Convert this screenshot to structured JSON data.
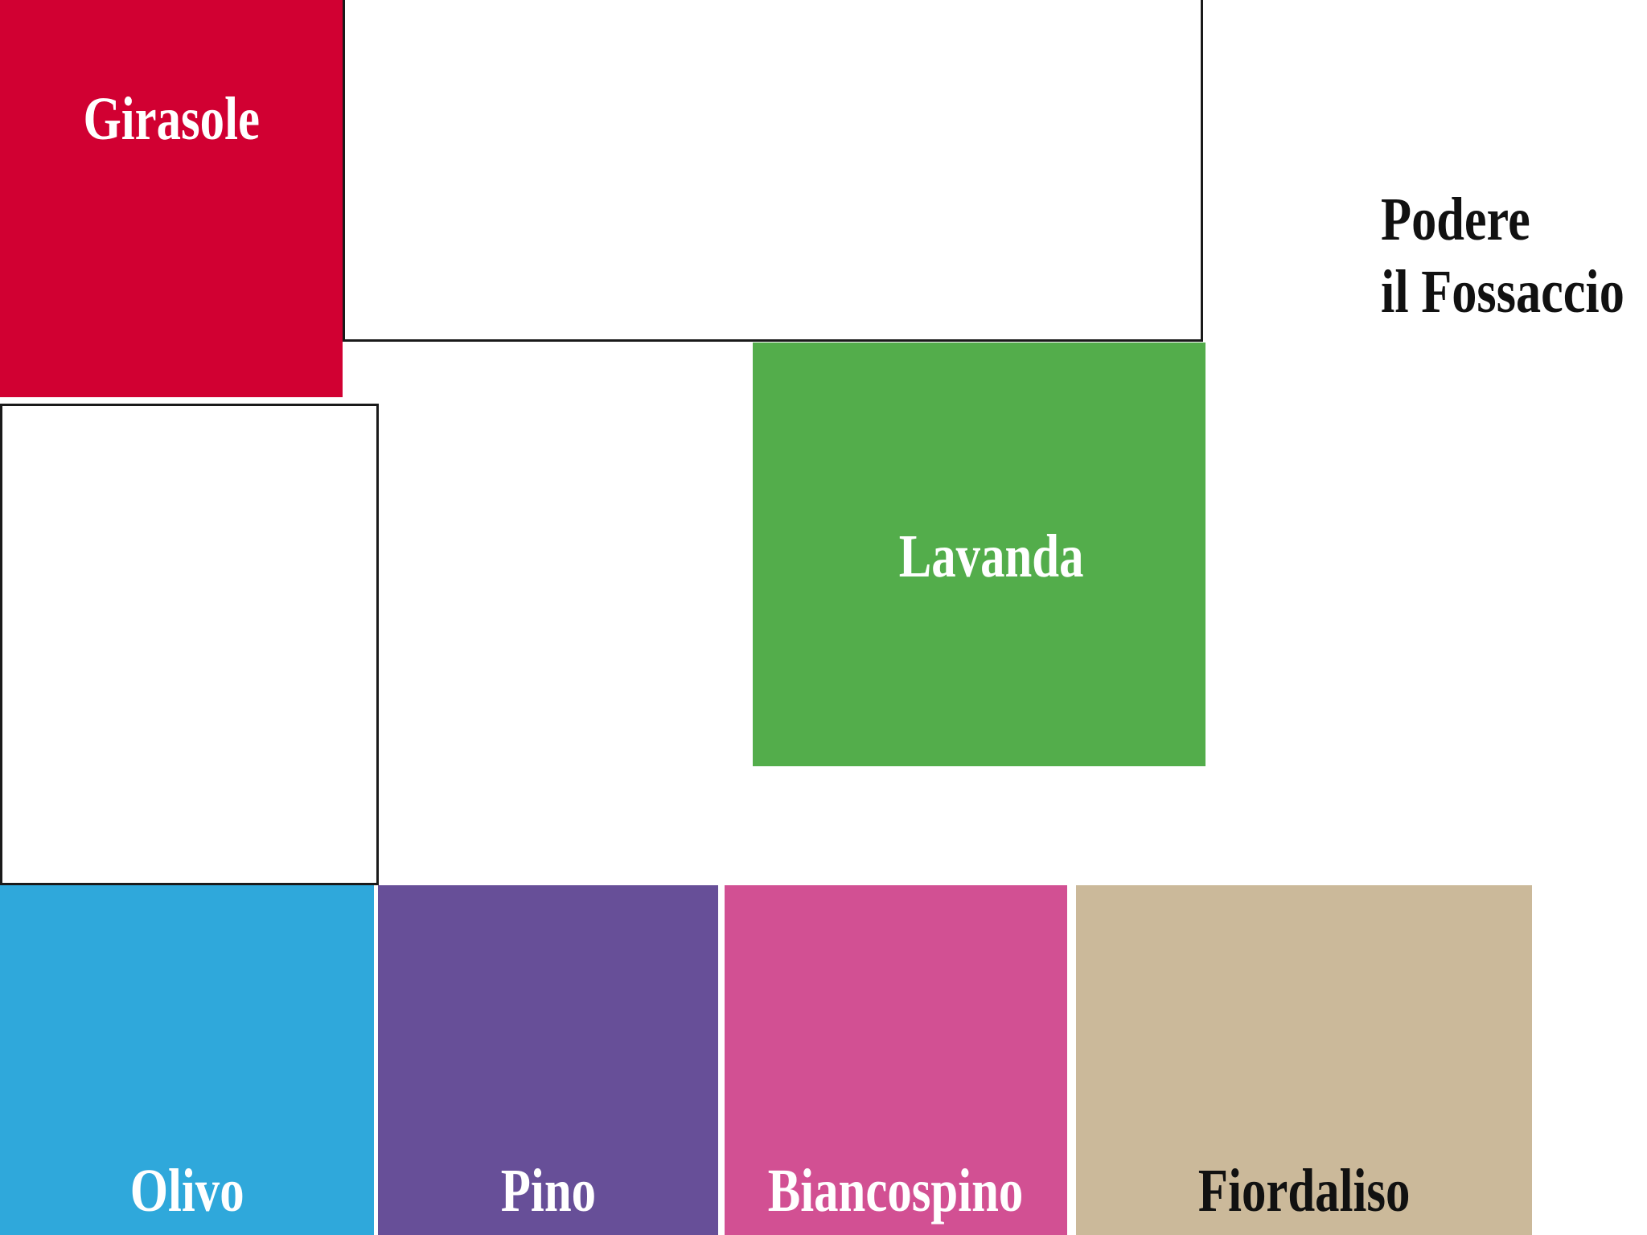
{
  "title": {
    "line1": "Podere",
    "line2": "il Fossaccio"
  },
  "plots": {
    "girasole": {
      "label": "Girasole",
      "color": "#D10032"
    },
    "lavanda": {
      "label": "Lavanda",
      "color": "#53AD4B"
    },
    "olivo": {
      "label": "Olivo",
      "color": "#2FA8DB"
    },
    "pino": {
      "label": "Pino",
      "color": "#674F98"
    },
    "biancospino": {
      "label": "Biancospino",
      "color": "#D25093"
    },
    "fiordaliso": {
      "label": "Fiordaliso",
      "color": "#CBB99A"
    }
  }
}
